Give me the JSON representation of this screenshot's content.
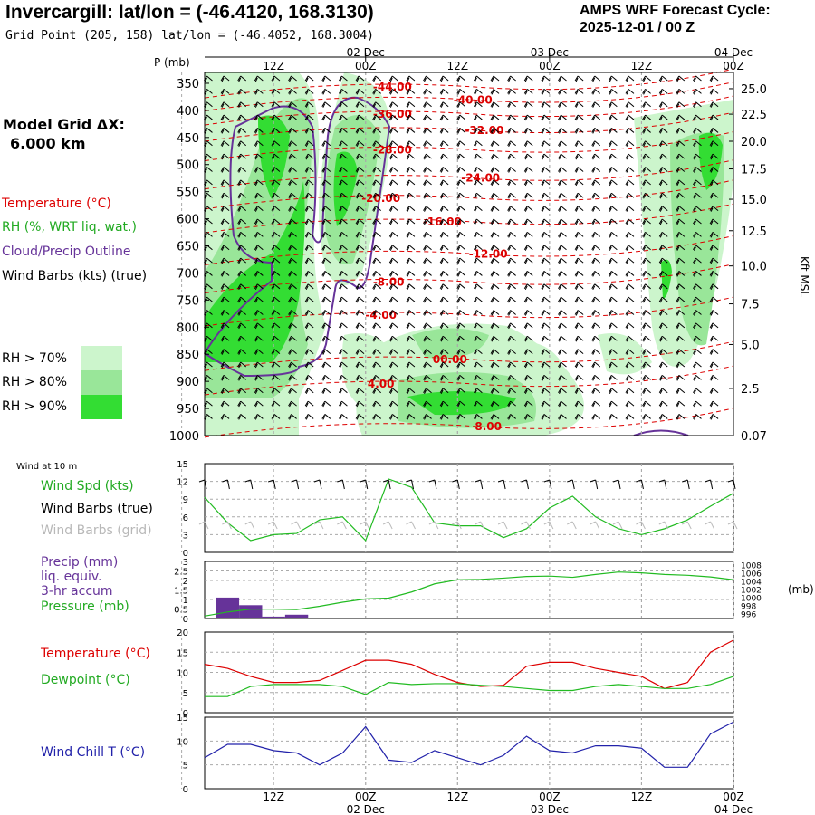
{
  "header": {
    "title": "Invercargill:  lat/lon = (-46.4120, 168.3130)",
    "subtitle": "Grid Point (205, 158) lat/lon = (-46.4052, 168.3004)",
    "cycle_label": "AMPS WRF Forecast Cycle:",
    "cycle_value": "2025-12-01 / 00  Z"
  },
  "left_panel": {
    "grid_label": "Model Grid ΔX:",
    "grid_value": "6.000 km",
    "legend": {
      "temperature": "Temperature (°C)",
      "rh": "RH (%, WRT liq. wat.)",
      "cloud": "Cloud/Precip Outline",
      "wind": "Wind Barbs (kts) (true)"
    },
    "rh_levels": [
      "RH > 70%",
      "RH > 80%",
      "RH > 90%"
    ],
    "wind10m_title": "Wind at 10 m",
    "wind_spd": "Wind Spd (kts)",
    "wind_barbs_true": "Wind Barbs (true)",
    "wind_barbs_grid": "Wind Barbs (grid)",
    "precip_1": "Precip (mm)",
    "precip_2": "liq. equiv.",
    "precip_3": "3-hr accum",
    "pressure": "Pressure (mb)",
    "temp": "Temperature (°C)",
    "dewpoint": "Dewpoint (°C)",
    "windchill": "Wind Chill T (°C)"
  },
  "colors": {
    "temperature": "#dd0000",
    "rh70": "#ccf5cc",
    "rh80": "#99e699",
    "rh90": "#33dd33",
    "cloud": "#663399",
    "precip": "#663399",
    "wind_spd": "#22bb22",
    "pressure": "#22bb22",
    "windchill": "#2222aa",
    "grid": "#aaaaaa"
  },
  "chart_data": {
    "time_axis": {
      "hours": [
        0,
        24,
        36,
        48,
        60,
        72
      ],
      "top_hour_labels": [
        "12Z",
        "00Z",
        "12Z",
        "00Z",
        "12Z",
        "00Z"
      ],
      "top_hour_at": [
        12,
        24,
        36,
        48,
        60,
        72
      ],
      "date_labels": [
        "02 Dec",
        "03 Dec",
        "04 Dec"
      ],
      "date_at": [
        24,
        48,
        72
      ],
      "range_hours": [
        3,
        72
      ]
    },
    "cross_section": {
      "type": "contour",
      "ylabel": "P (mb)",
      "pressure_ticks": [
        350,
        400,
        450,
        500,
        550,
        600,
        650,
        700,
        750,
        800,
        850,
        900,
        950,
        1000
      ],
      "pressure_range": [
        330,
        1000
      ],
      "height_ticks": [
        {
          "p": 360,
          "label": "25.0"
        },
        {
          "p": 407,
          "label": "22.5"
        },
        {
          "p": 457,
          "label": "20.0"
        },
        {
          "p": 508,
          "label": "17.5"
        },
        {
          "p": 564,
          "label": "15.0"
        },
        {
          "p": 622,
          "label": "12.5"
        },
        {
          "p": 687,
          "label": "10.0"
        },
        {
          "p": 757,
          "label": "7.5"
        },
        {
          "p": 832,
          "label": "5.0"
        },
        {
          "p": 913,
          "label": "2.5"
        },
        {
          "p": 1000,
          "label": "0.07"
        }
      ],
      "height_axis_label": "Kft MSL",
      "temperature_contours": [
        {
          "label": "-44.00",
          "t": 27.5,
          "p": 357
        },
        {
          "label": "-40.00",
          "t": 38,
          "p": 381
        },
        {
          "label": "-36.00",
          "t": 27.5,
          "p": 407
        },
        {
          "label": "-32.00",
          "t": 39.5,
          "p": 437
        },
        {
          "label": "-28.00",
          "t": 27.5,
          "p": 473
        },
        {
          "label": "-24.00",
          "t": 39,
          "p": 525
        },
        {
          "label": "-20.00",
          "t": 26,
          "p": 562
        },
        {
          "label": "-16.00",
          "t": 34,
          "p": 606
        },
        {
          "label": "-12.00",
          "t": 40,
          "p": 665
        },
        {
          "label": "-8.00",
          "t": 27,
          "p": 717
        },
        {
          "label": "-4.00",
          "t": 26,
          "p": 778
        },
        {
          "label": "00.00",
          "t": 35,
          "p": 860
        },
        {
          "label": "4.00",
          "t": 26,
          "p": 905
        },
        {
          "label": "8.00",
          "t": 40,
          "p": 983
        }
      ]
    },
    "wind10m": {
      "type": "line",
      "ylim": [
        0,
        15
      ],
      "yticks": [
        0,
        3,
        6,
        9,
        12,
        15
      ],
      "x": [
        3,
        6,
        9,
        12,
        15,
        18,
        21,
        24,
        27,
        30,
        33,
        36,
        39,
        42,
        45,
        48,
        51,
        54,
        57,
        60,
        63,
        66,
        69,
        72
      ],
      "values": [
        9.3,
        5,
        2,
        3,
        3.2,
        5.5,
        6,
        2,
        12.4,
        11,
        5,
        4.5,
        4.5,
        2.5,
        4,
        7.5,
        9.5,
        6,
        4,
        3,
        4,
        5.5,
        7.8,
        10
      ]
    },
    "precip_pressure": {
      "precip": {
        "type": "bar",
        "ylim": [
          0,
          3
        ],
        "yticks": [
          0,
          0.5,
          1,
          1.5,
          2,
          2.5,
          3
        ],
        "x": [
          6,
          9,
          12,
          15
        ],
        "values": [
          1.1,
          0.7,
          0.1,
          0.2
        ]
      },
      "pressure": {
        "type": "line",
        "ylim": [
          995,
          1009
        ],
        "yticks": [
          996,
          998,
          1000,
          1002,
          1004,
          1006,
          1008
        ],
        "x": [
          3,
          6,
          9,
          12,
          15,
          18,
          21,
          24,
          27,
          30,
          33,
          36,
          39,
          42,
          45,
          48,
          51,
          54,
          57,
          60,
          63,
          66,
          69,
          72
        ],
        "values": [
          995.6,
          996.6,
          997.3,
          997.3,
          997.2,
          998,
          999,
          999.8,
          1000,
          1001.5,
          1003.5,
          1004.5,
          1004.6,
          1004.9,
          1005.3,
          1005.4,
          1005.1,
          1005.8,
          1006.4,
          1006.2,
          1005.8,
          1005.6,
          1005.2,
          1004.5
        ]
      }
    },
    "temp_dew": {
      "type": "line",
      "ylim": [
        0,
        20
      ],
      "yticks": [
        0,
        5,
        10,
        15,
        20
      ],
      "x": [
        3,
        6,
        9,
        12,
        15,
        18,
        21,
        24,
        27,
        30,
        33,
        36,
        39,
        42,
        45,
        48,
        51,
        54,
        57,
        60,
        63,
        66,
        69,
        72
      ],
      "series": [
        {
          "name": "Temperature",
          "values": [
            12,
            11,
            9,
            7.5,
            7.5,
            8,
            10.5,
            13,
            13,
            12,
            9.5,
            7.5,
            6.5,
            6.8,
            11.5,
            12.5,
            12.5,
            11,
            10,
            9,
            6,
            7.5,
            15,
            18
          ]
        },
        {
          "name": "Dewpoint",
          "values": [
            4,
            4,
            6.5,
            7,
            7,
            7,
            6.5,
            4.5,
            7.5,
            7,
            7.2,
            7.2,
            6.8,
            6.5,
            6,
            5.5,
            5.5,
            6.5,
            7,
            6.5,
            6,
            6,
            7,
            9
          ]
        }
      ]
    },
    "windchill": {
      "type": "line",
      "ylim": [
        0,
        15
      ],
      "yticks": [
        0,
        5,
        10,
        15
      ],
      "x": [
        3,
        6,
        9,
        12,
        15,
        18,
        21,
        24,
        27,
        30,
        33,
        36,
        39,
        42,
        45,
        48,
        51,
        54,
        57,
        60,
        63,
        66,
        69,
        72
      ],
      "values": [
        6.5,
        9.3,
        9.3,
        8,
        7.5,
        5,
        7.5,
        13,
        6,
        5.5,
        8,
        6.5,
        5,
        7,
        11,
        8,
        7.5,
        9,
        9,
        8.5,
        4.5,
        4.5,
        11.5,
        14
      ]
    }
  }
}
